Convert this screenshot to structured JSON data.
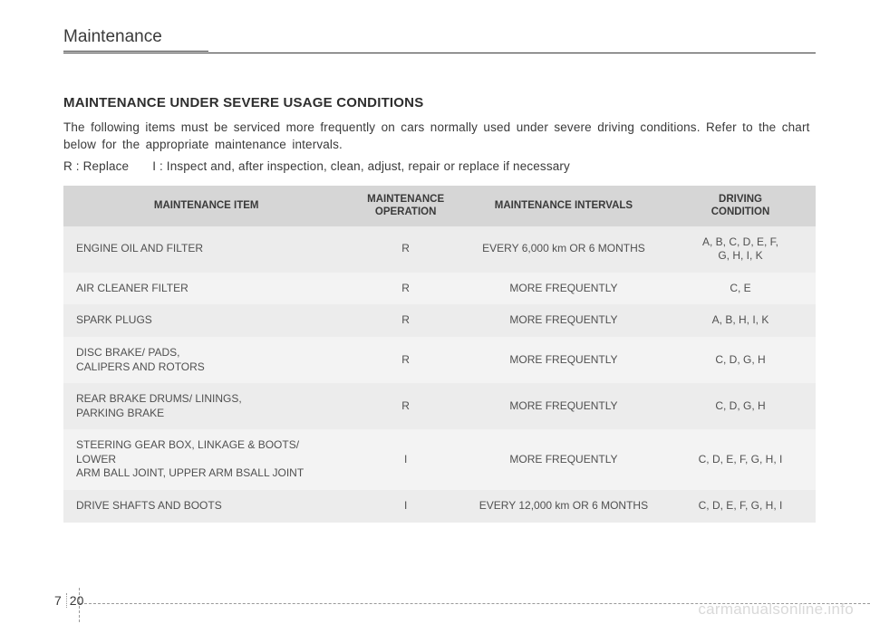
{
  "section_title": "Maintenance",
  "heading": "MAINTENANCE UNDER SEVERE USAGE CONDITIONS",
  "intro": "The following items must be serviced more frequently on cars normally used under severe driving conditions. Refer to the chart below for the appropriate maintenance intervals.",
  "legend_r": "R : Replace",
  "legend_i": "I : Inspect and, after inspection, clean, adjust, repair or replace if necessary",
  "table": {
    "headers": {
      "item": "MAINTENANCE ITEM",
      "operation": "MAINTENANCE\nOPERATION",
      "intervals": "MAINTENANCE INTERVALS",
      "condition": "DRIVING\nCONDITION"
    },
    "rows": [
      {
        "item": "ENGINE OIL AND FILTER",
        "op": "R",
        "interval": "EVERY 6,000 km OR 6 MONTHS",
        "cond": "A, B, C, D, E, F,\nG, H, I, K"
      },
      {
        "item": "AIR CLEANER FILTER",
        "op": "R",
        "interval": "MORE FREQUENTLY",
        "cond": "C, E"
      },
      {
        "item": "SPARK PLUGS",
        "op": "R",
        "interval": "MORE FREQUENTLY",
        "cond": "A, B, H, I, K"
      },
      {
        "item": "DISC BRAKE/ PADS,\nCALIPERS AND ROTORS",
        "op": "R",
        "interval": "MORE FREQUENTLY",
        "cond": "C, D, G, H"
      },
      {
        "item": "REAR BRAKE DRUMS/ LININGS,\nPARKING BRAKE",
        "op": "R",
        "interval": "MORE FREQUENTLY",
        "cond": "C, D, G, H"
      },
      {
        "item": "STEERING GEAR BOX, LINKAGE & BOOTS/\nLOWER\nARM BALL JOINT, UPPER ARM BSALL JOINT",
        "op": "I",
        "interval": "MORE FREQUENTLY",
        "cond": "C, D, E, F, G, H, I"
      },
      {
        "item": "DRIVE SHAFTS AND BOOTS",
        "op": "I",
        "interval": "EVERY 12,000 km OR 6 MONTHS",
        "cond": "C, D, E, F, G, H, I"
      }
    ]
  },
  "page": {
    "chapter": "7",
    "number": "20"
  },
  "watermark": "carmanualsonline.info",
  "colors": {
    "text": "#3a3a3a",
    "header_bg": "#d6d6d6",
    "row_bg_a": "#ececec",
    "row_bg_b": "#f3f3f3",
    "watermark": "#d9d9d9"
  }
}
